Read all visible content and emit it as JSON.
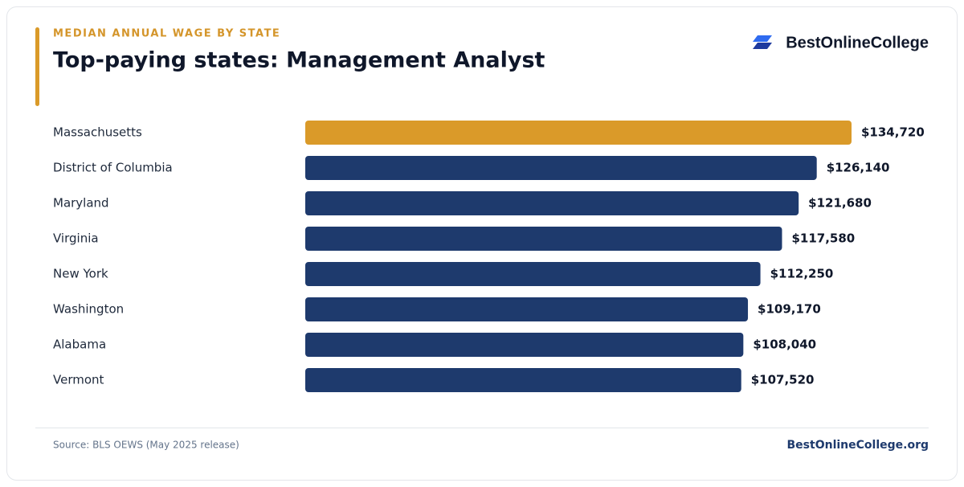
{
  "chart_data": {
    "type": "bar",
    "orientation": "horizontal",
    "eyebrow": "MEDIAN ANNUAL WAGE BY STATE",
    "title": "Top-paying states: Management Analyst",
    "brand": "BestOnlineCollege",
    "categories": [
      "Massachusetts",
      "District of Columbia",
      "Maryland",
      "Virginia",
      "New York",
      "Washington",
      "Alabama",
      "Vermont"
    ],
    "values": [
      134720,
      126140,
      121680,
      117580,
      112250,
      109170,
      108040,
      107520
    ],
    "value_labels": [
      "$134,720",
      "$126,140",
      "$121,680",
      "$117,580",
      "$112,250",
      "$109,170",
      "$108,040",
      "$107,520"
    ],
    "colors": [
      "#da9a29",
      "#1e3a6d",
      "#1e3a6d",
      "#1e3a6d",
      "#1e3a6d",
      "#1e3a6d",
      "#1e3a6d",
      "#1e3a6d"
    ],
    "source": "Source: BLS OEWS (May 2025 release)",
    "footer_brand": "BestOnlineCollege.org"
  }
}
